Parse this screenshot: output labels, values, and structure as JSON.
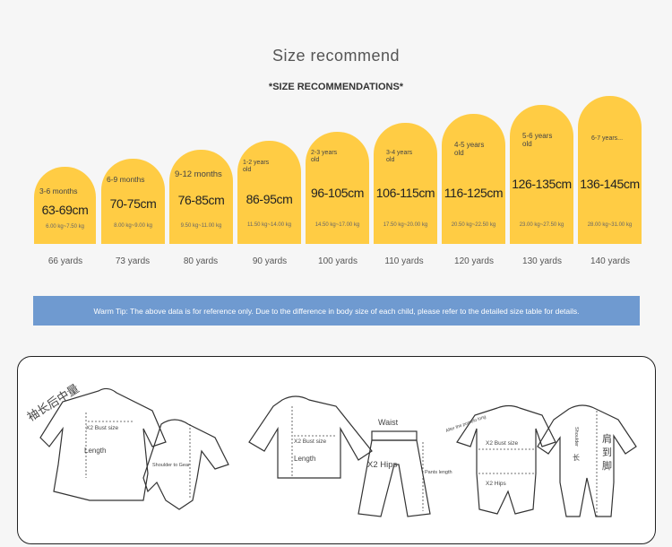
{
  "header": {
    "title": "Size recommend",
    "subtitle": "*SIZE RECOMMENDATIONS*"
  },
  "sizes": [
    {
      "age": "3-6 months",
      "cm": "63-69cm",
      "kg": "6.00 kg~7.50 kg",
      "yards": "66 yards"
    },
    {
      "age": "6-9 months",
      "cm": "70-75cm",
      "kg": "8.00 kg~9.00 kg",
      "yards": "73 yards"
    },
    {
      "age": "9-12 months",
      "cm": "76-85cm",
      "kg": "9.50 kg~11.00 kg",
      "yards": "80 yards"
    },
    {
      "age": "1-2 years old",
      "cm": "86-95cm",
      "kg": "11.50 kg~14.00 kg",
      "yards": "90 yards"
    },
    {
      "age": "2-3 years old",
      "cm": "96-105cm",
      "kg": "14.50 kg~17.00 kg",
      "yards": "100 yards"
    },
    {
      "age": "3-4 years old",
      "cm": "106-115cm",
      "kg": "17.50 kg~20.00 kg",
      "yards": "110 yards"
    },
    {
      "age": "4-5 years old",
      "cm": "116-125cm",
      "kg": "20.50 kg~22.50 kg",
      "yards": "120 yards"
    },
    {
      "age": "5-6 years old",
      "cm": "126-135cm",
      "kg": "23.00 kg~27.50 kg",
      "yards": "130 yards"
    },
    {
      "age": "6-7 years...",
      "cm": "136-145cm",
      "kg": "28.00 kg~31.00 kg",
      "yards": "140 yards"
    }
  ],
  "tip": "Warm Tip: The above data is for reference only. Due to the difference in body size of each child, please refer to the detailed size table for details.",
  "diagram": {
    "sleeve_cn": "袖长后中量",
    "bust1": "X2 Bust size",
    "length1": "Length",
    "shoulder1": "Shoulder to Gear",
    "bust2": "X2 Bust size",
    "length2": "Length",
    "waist": "Waist",
    "hips2": "X2 Hips",
    "pants": "Pants length",
    "pomelo": "After the pomelo long",
    "bust3": "X2 Bust size",
    "hips3": "X2 Hips",
    "shoulder3": "Shoulder",
    "cn_short": "长",
    "cn_shoulder_foot": "肩到脚"
  },
  "colors": {
    "bar": "#ffcc44",
    "tip_bg": "#6f9ad0",
    "background": "#f6f6f6"
  }
}
